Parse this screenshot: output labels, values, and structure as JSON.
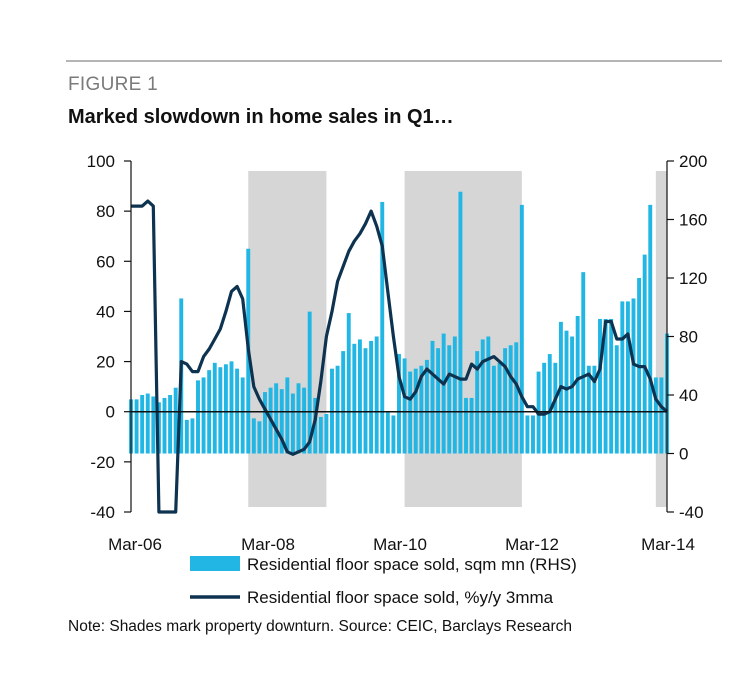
{
  "figure_label": "FIGURE 1",
  "title": "Marked slowdown in home sales in Q1…",
  "note": "Note: Shades mark property downturn. Source: CEIC, Barclays Research",
  "colors": {
    "bars": "#21b6e3",
    "line": "#0d3350",
    "shade": "#d6d6d6",
    "axis": "#111111"
  },
  "chart_data": {
    "type": "bar",
    "x_tick_labels": [
      "Mar-06",
      "Mar-08",
      "Mar-10",
      "Mar-12",
      "Mar-14"
    ],
    "x_range": [
      "2006-03",
      "2014-03"
    ],
    "y_left_ticks": [
      "100",
      "80",
      "60",
      "40",
      "20",
      "0",
      "-20",
      "-40"
    ],
    "y_left_range": [
      -40,
      100
    ],
    "y_right_ticks": [
      "200",
      "160",
      "120",
      "80",
      "40",
      "0",
      "-40"
    ],
    "y_right_range": [
      -40,
      200
    ],
    "legend_position": "bottom",
    "shaded_periods": [
      [
        "2007-12",
        "2009-02"
      ],
      [
        "2010-04",
        "2012-01"
      ],
      [
        "2014-01",
        "2014-03"
      ]
    ],
    "series": [
      {
        "name": "Residential floor space sold, sqm mn (RHS)",
        "type": "bar",
        "axis": "right",
        "x": [
          "2006-03",
          "2006-04",
          "2006-05",
          "2006-06",
          "2006-07",
          "2006-08",
          "2006-09",
          "2006-10",
          "2006-11",
          "2006-12",
          "2007-01",
          "2007-02",
          "2007-03",
          "2007-04",
          "2007-05",
          "2007-06",
          "2007-07",
          "2007-08",
          "2007-09",
          "2007-10",
          "2007-11",
          "2007-12",
          "2008-01",
          "2008-02",
          "2008-03",
          "2008-04",
          "2008-05",
          "2008-06",
          "2008-07",
          "2008-08",
          "2008-09",
          "2008-10",
          "2008-11",
          "2008-12",
          "2009-01",
          "2009-02",
          "2009-03",
          "2009-04",
          "2009-05",
          "2009-06",
          "2009-07",
          "2009-08",
          "2009-09",
          "2009-10",
          "2009-11",
          "2009-12",
          "2010-01",
          "2010-02",
          "2010-03",
          "2010-04",
          "2010-05",
          "2010-06",
          "2010-07",
          "2010-08",
          "2010-09",
          "2010-10",
          "2010-11",
          "2010-12",
          "2011-01",
          "2011-02",
          "2011-03",
          "2011-04",
          "2011-05",
          "2011-06",
          "2011-07",
          "2011-08",
          "2011-09",
          "2011-10",
          "2011-11",
          "2011-12",
          "2012-01",
          "2012-02",
          "2012-03",
          "2012-04",
          "2012-05",
          "2012-06",
          "2012-07",
          "2012-08",
          "2012-09",
          "2012-10",
          "2012-11",
          "2012-12",
          "2013-01",
          "2013-02",
          "2013-03",
          "2013-04",
          "2013-05",
          "2013-06",
          "2013-07",
          "2013-08",
          "2013-09",
          "2013-10",
          "2013-11",
          "2013-12",
          "2014-01",
          "2014-02",
          "2014-03"
        ],
        "values": [
          37,
          37,
          40,
          41,
          39,
          35,
          38,
          40,
          45,
          106,
          23,
          24,
          50,
          52,
          57,
          62,
          59,
          61,
          63,
          58,
          52,
          140,
          24,
          22,
          42,
          45,
          48,
          44,
          52,
          41,
          48,
          45,
          97,
          38,
          25,
          27,
          58,
          60,
          70,
          96,
          75,
          78,
          72,
          77,
          80,
          172,
          28,
          26,
          68,
          65,
          56,
          58,
          60,
          64,
          77,
          72,
          82,
          74,
          80,
          179,
          38,
          38,
          70,
          78,
          80,
          60,
          62,
          72,
          74,
          76,
          170,
          26,
          26,
          56,
          62,
          68,
          62,
          90,
          84,
          80,
          94,
          124,
          60,
          60,
          92,
          92,
          92,
          74,
          104,
          104,
          106,
          120,
          136,
          170,
          52,
          52,
          82
        ]
      },
      {
        "name": "Residential floor space sold, %y/y 3mma",
        "type": "line",
        "axis": "left",
        "x": [
          "2006-03",
          "2006-04",
          "2006-05",
          "2006-06",
          "2006-07",
          "2006-08",
          "2006-09",
          "2006-10",
          "2006-11",
          "2006-12",
          "2007-01",
          "2007-02",
          "2007-03",
          "2007-04",
          "2007-05",
          "2007-06",
          "2007-07",
          "2007-08",
          "2007-09",
          "2007-10",
          "2007-11",
          "2007-12",
          "2008-01",
          "2008-02",
          "2008-03",
          "2008-04",
          "2008-05",
          "2008-06",
          "2008-07",
          "2008-08",
          "2008-09",
          "2008-10",
          "2008-11",
          "2008-12",
          "2009-01",
          "2009-02",
          "2009-03",
          "2009-04",
          "2009-05",
          "2009-06",
          "2009-07",
          "2009-08",
          "2009-09",
          "2009-10",
          "2009-11",
          "2009-12",
          "2010-01",
          "2010-02",
          "2010-03",
          "2010-04",
          "2010-05",
          "2010-06",
          "2010-07",
          "2010-08",
          "2010-09",
          "2010-10",
          "2010-11",
          "2010-12",
          "2011-01",
          "2011-02",
          "2011-03",
          "2011-04",
          "2011-05",
          "2011-06",
          "2011-07",
          "2011-08",
          "2011-09",
          "2011-10",
          "2011-11",
          "2011-12",
          "2012-01",
          "2012-02",
          "2012-03",
          "2012-04",
          "2012-05",
          "2012-06",
          "2012-07",
          "2012-08",
          "2012-09",
          "2012-10",
          "2012-11",
          "2012-12",
          "2013-01",
          "2013-02",
          "2013-03",
          "2013-04",
          "2013-05",
          "2013-06",
          "2013-07",
          "2013-08",
          "2013-09",
          "2013-10",
          "2013-11",
          "2013-12",
          "2014-01",
          "2014-02",
          "2014-03"
        ],
        "values": [
          82,
          82,
          82,
          84,
          82,
          -40,
          -40,
          -40,
          -40,
          20,
          19,
          16,
          16,
          22,
          25,
          29,
          33,
          40,
          48,
          50,
          45,
          25,
          10,
          5,
          1,
          -3,
          -7,
          -11,
          -16,
          -17,
          -16,
          -15,
          -12,
          -3,
          12,
          30,
          40,
          52,
          58,
          64,
          68,
          71,
          75,
          80,
          74,
          66,
          48,
          30,
          14,
          6,
          5,
          8,
          14,
          17,
          15,
          13,
          11,
          15,
          14,
          13,
          13,
          19,
          17,
          20,
          21,
          22,
          20,
          18,
          14,
          11,
          6,
          2,
          2,
          -1,
          -1,
          0,
          5,
          10,
          9,
          10,
          13,
          14,
          15,
          12,
          17,
          36,
          36,
          29,
          29,
          31,
          19,
          18,
          18,
          13,
          5,
          2,
          0
        ]
      }
    ]
  }
}
